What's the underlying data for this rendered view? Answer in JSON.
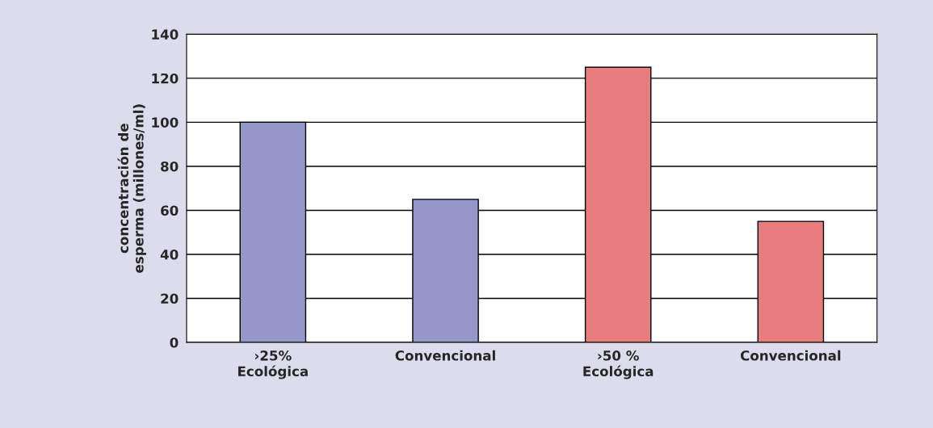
{
  "chart_data": {
    "type": "bar",
    "ylabel": "concentración de\nesperma (millones/ml)",
    "categories": [
      "›25%\nEcológica",
      "Convencional",
      "›50 %\nEcológica",
      "Convencional"
    ],
    "values": [
      100,
      65,
      125,
      55
    ],
    "colors": [
      "#9497c8",
      "#9497c8",
      "#e87c7e",
      "#e87c7e"
    ],
    "ylim": [
      0,
      140
    ],
    "yticks": [
      0,
      20,
      40,
      60,
      80,
      100,
      120,
      140
    ],
    "grid": "y"
  }
}
